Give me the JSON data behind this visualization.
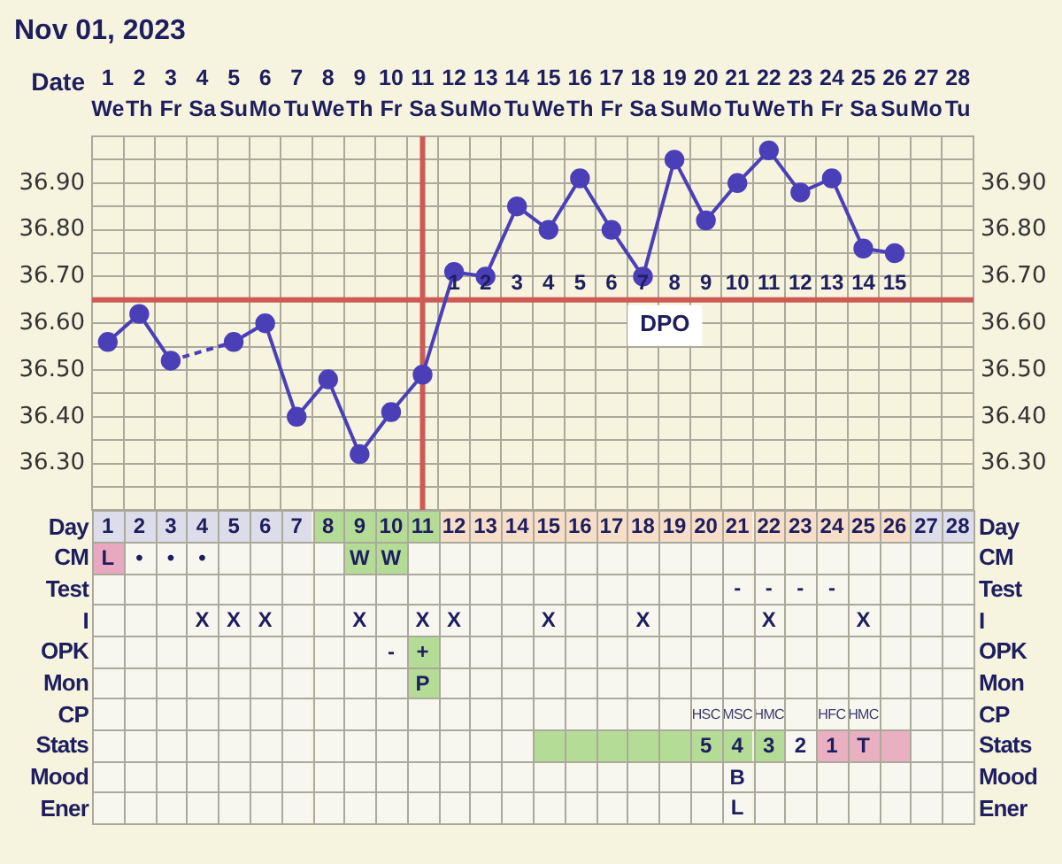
{
  "chart_data": [
    {
      "type": "line",
      "title": "Nov 01, 2023",
      "xlabel": "Date",
      "categories": [
        "1\nWe",
        "2\nTh",
        "3\nFr",
        "4\nSa",
        "5\nSu",
        "6\nMo",
        "7\nTu",
        "8\nWe",
        "9\nTh",
        "10\nFr",
        "11\nSa",
        "12\nSu",
        "13\nMo",
        "14\nTu",
        "15\nWe",
        "16\nTh",
        "17\nFr",
        "18\nSa",
        "19\nSu",
        "20\nMo",
        "21\nTu",
        "22\nWe",
        "23\nTh",
        "24\nFr",
        "25\nSa",
        "26\nSu",
        "27\nMo",
        "28\nTu"
      ],
      "series": [
        {
          "color": "#4b3fb8",
          "values": [
            36.56,
            36.62,
            36.52,
            null,
            36.56,
            36.6,
            36.4,
            36.48,
            36.32,
            36.41,
            36.49,
            36.71,
            36.7,
            36.85,
            36.8,
            36.91,
            36.8,
            36.7,
            36.95,
            36.82,
            36.9,
            36.97,
            36.88,
            36.91,
            36.76,
            36.75,
            null,
            null
          ]
        }
      ],
      "marker": "circle",
      "grid": true,
      "ylim": [
        36.2,
        37.0
      ],
      "yticks": [
        {
          "value": 36.2,
          "label": null
        },
        {
          "value": 36.25,
          "label": null
        },
        {
          "value": 36.3,
          "label": "36.30"
        },
        {
          "value": 36.35,
          "label": null
        },
        {
          "value": 36.4,
          "label": "36.40"
        },
        {
          "value": 36.45,
          "label": null
        },
        {
          "value": 36.5,
          "label": "36.50"
        },
        {
          "value": 36.55,
          "label": null
        },
        {
          "value": 36.6,
          "label": "36.60"
        },
        {
          "value": 36.7,
          "label": "36.70"
        },
        {
          "value": 36.75,
          "label": null
        },
        {
          "value": 36.8,
          "label": "36.80"
        },
        {
          "value": 36.85,
          "label": null
        },
        {
          "value": 36.9,
          "label": "36.90"
        },
        {
          "value": 36.95,
          "label": null
        }
      ],
      "y2lim": [
        36.2,
        37.0
      ],
      "y2ticks": [
        {
          "value": 36.2,
          "label": null
        },
        {
          "value": 36.25,
          "label": null
        },
        {
          "value": 36.3,
          "label": "36.30"
        },
        {
          "value": 36.35,
          "label": null
        },
        {
          "value": 36.4,
          "label": "36.40"
        },
        {
          "value": 36.45,
          "label": null
        },
        {
          "value": 36.5,
          "label": "36.50"
        },
        {
          "value": 36.55,
          "label": null
        },
        {
          "value": 36.6,
          "label": "36.60"
        },
        {
          "value": 36.7,
          "label": "36.70"
        },
        {
          "value": 36.75,
          "label": null
        },
        {
          "value": 36.8,
          "label": "36.80"
        },
        {
          "value": 36.85,
          "label": null
        },
        {
          "value": 36.9,
          "label": "36.90"
        },
        {
          "value": 36.95,
          "label": null
        }
      ],
      "ref_lines": [
        {
          "axis": "y",
          "value": 36.65,
          "label": "DPO",
          "color": "#cc5a55"
        },
        {
          "axis": "x",
          "value": "11\nSa",
          "color": "#cc5a55"
        }
      ],
      "annotations": [
        "1",
        "2",
        "3",
        "4",
        "5",
        "6",
        "7",
        "8",
        "9",
        "10",
        "11",
        "12",
        "13",
        "14",
        "15"
      ]
    },
    {
      "type": "heatmap",
      "grid": true,
      "categories": [
        null,
        null,
        null,
        null,
        null,
        null,
        null,
        null,
        null,
        null,
        null,
        null,
        null,
        null,
        null,
        null,
        null,
        null,
        null,
        null,
        null,
        null,
        null,
        null,
        null,
        null,
        null,
        null
      ],
      "y_categories": [
        "Day",
        "CM",
        "Test",
        "I",
        "OPK",
        "Mon",
        "CP",
        "Stats",
        "Mood",
        "Ener"
      ],
      "y2_categories": [
        "Day",
        "CM",
        "Test",
        "I",
        "OPK",
        "Mon",
        "CP",
        "Stats",
        "Mood",
        "Ener"
      ],
      "cells": [
        [
          null,
          null,
          null,
          null,
          null,
          null,
          null,
          null,
          null,
          null,
          null,
          null,
          null,
          null,
          null,
          null,
          null,
          null,
          null,
          null,
          null,
          null,
          null,
          null,
          null,
          null,
          null,
          null
        ],
        [
          null,
          null,
          null,
          null,
          null,
          null,
          null,
          null,
          null,
          null,
          null,
          null,
          null,
          null,
          null,
          null,
          null,
          null,
          null,
          null,
          null,
          null,
          null,
          null,
          null,
          null,
          null,
          null
        ],
        [
          null,
          null,
          null,
          null,
          null,
          null,
          null,
          null,
          null,
          null,
          null,
          null,
          null,
          null,
          null,
          null,
          null,
          null,
          null,
          null,
          null,
          null,
          null,
          null,
          null,
          null,
          null,
          null
        ],
        [
          null,
          null,
          null,
          null,
          null,
          null,
          null,
          null,
          null,
          null,
          null,
          null,
          null,
          null,
          null,
          null,
          null,
          null,
          null,
          null,
          null,
          null,
          null,
          null,
          null,
          null,
          null,
          null
        ],
        [
          null,
          null,
          null,
          null,
          null,
          null,
          null,
          null,
          null,
          null,
          null,
          null,
          null,
          null,
          null,
          null,
          null,
          null,
          null,
          null,
          null,
          null,
          null,
          null,
          null,
          null,
          null,
          null
        ],
        [
          null,
          null,
          null,
          null,
          null,
          null,
          null,
          null,
          null,
          null,
          null,
          null,
          null,
          null,
          null,
          null,
          null,
          null,
          null,
          null,
          null,
          null,
          null,
          null,
          null,
          null,
          null,
          null
        ],
        [
          null,
          null,
          null,
          null,
          null,
          null,
          null,
          null,
          null,
          null,
          null,
          null,
          null,
          null,
          null,
          null,
          null,
          null,
          null,
          null,
          null,
          null,
          null,
          null,
          null,
          null,
          null,
          null
        ],
        [
          null,
          null,
          null,
          null,
          null,
          null,
          null,
          null,
          null,
          null,
          null,
          null,
          null,
          null,
          null,
          null,
          null,
          null,
          null,
          null,
          null,
          null,
          null,
          null,
          null,
          null,
          null,
          null
        ],
        [
          null,
          null,
          null,
          null,
          null,
          null,
          null,
          null,
          null,
          null,
          null,
          null,
          null,
          null,
          null,
          null,
          null,
          null,
          null,
          null,
          null,
          null,
          null,
          null,
          null,
          null,
          null,
          null
        ],
        [
          null,
          null,
          null,
          null,
          null,
          null,
          null,
          null,
          null,
          null,
          null,
          null,
          null,
          null,
          null,
          null,
          null,
          null,
          null,
          null,
          null,
          null,
          null,
          null,
          null,
          null,
          null,
          null
        ]
      ],
      "cell_labels": [
        [
          "1",
          "2",
          "3",
          "4",
          "5",
          "6",
          "7",
          "8",
          "9",
          "10",
          "11",
          "12",
          "13",
          "14",
          "15",
          "16",
          "17",
          "18",
          "19",
          "20",
          "21",
          "22",
          "23",
          "24",
          "25",
          "26",
          "27",
          "28"
        ],
        [
          "L",
          "•",
          "•",
          "•",
          null,
          null,
          null,
          null,
          "W",
          "W",
          null,
          null,
          null,
          null,
          null,
          null,
          null,
          null,
          null,
          null,
          null,
          null,
          null,
          null,
          null,
          null,
          null,
          null
        ],
        [
          null,
          null,
          null,
          null,
          null,
          null,
          null,
          null,
          null,
          null,
          null,
          null,
          null,
          null,
          null,
          null,
          null,
          null,
          null,
          null,
          "-",
          "-",
          "-",
          "-",
          null,
          null,
          null,
          null
        ],
        [
          null,
          null,
          null,
          "X",
          "X",
          "X",
          null,
          null,
          "X",
          null,
          "X",
          "X",
          null,
          null,
          "X",
          null,
          null,
          "X",
          null,
          null,
          null,
          "X",
          null,
          null,
          "X",
          null,
          null,
          null
        ],
        [
          null,
          null,
          null,
          null,
          null,
          null,
          null,
          null,
          null,
          "-",
          "+",
          null,
          null,
          null,
          null,
          null,
          null,
          null,
          null,
          null,
          null,
          null,
          null,
          null,
          null,
          null,
          null,
          null
        ],
        [
          null,
          null,
          null,
          null,
          null,
          null,
          null,
          null,
          null,
          null,
          "P",
          null,
          null,
          null,
          null,
          null,
          null,
          null,
          null,
          null,
          null,
          null,
          null,
          null,
          null,
          null,
          null,
          null
        ],
        [
          null,
          null,
          null,
          null,
          null,
          null,
          null,
          null,
          null,
          null,
          null,
          null,
          null,
          null,
          null,
          null,
          null,
          null,
          null,
          "HSC",
          "MSC",
          "HMC",
          null,
          "HFC",
          "HMC",
          null,
          null,
          null
        ],
        [
          null,
          null,
          null,
          null,
          null,
          null,
          null,
          null,
          null,
          null,
          null,
          null,
          null,
          null,
          null,
          null,
          null,
          null,
          null,
          "5",
          "4",
          "3",
          "2",
          "1",
          "T",
          null,
          null,
          null
        ],
        [
          null,
          null,
          null,
          null,
          null,
          null,
          null,
          null,
          null,
          null,
          null,
          null,
          null,
          null,
          null,
          null,
          null,
          null,
          null,
          null,
          "B",
          null,
          null,
          null,
          null,
          null,
          null,
          null
        ],
        [
          null,
          null,
          null,
          null,
          null,
          null,
          null,
          null,
          null,
          null,
          null,
          null,
          null,
          null,
          null,
          null,
          null,
          null,
          null,
          null,
          "L",
          null,
          null,
          null,
          null,
          null,
          null,
          null
        ]
      ],
      "colors": [
        [
          "#dcdcea",
          "#dcdcea",
          "#dcdcea",
          "#dcdcea",
          "#dcdcea",
          "#dcdcea",
          "#dcdcea",
          "#b5dc96",
          "#b5dc96",
          "#b5dc96",
          "#b5dc96",
          "#f7dec8",
          "#f7dec8",
          "#f7dec8",
          "#f7dec8",
          "#f7dec8",
          "#f7dec8",
          "#f7dec8",
          "#f7dec8",
          "#f7dec8",
          "#f7dec8",
          "#f7dec8",
          "#f7dec8",
          "#f7dec8",
          "#f7dec8",
          "#f7dec8",
          "#dcdcea",
          "#dcdcea"
        ],
        [
          "#e8a9c0",
          null,
          null,
          null,
          null,
          null,
          null,
          null,
          "#b5dc96",
          "#b5dc96",
          null,
          null,
          null,
          null,
          null,
          null,
          null,
          null,
          null,
          null,
          null,
          null,
          null,
          null,
          null,
          null,
          null,
          null
        ],
        [
          null,
          null,
          null,
          null,
          null,
          null,
          null,
          null,
          null,
          null,
          null,
          null,
          null,
          null,
          null,
          null,
          null,
          null,
          null,
          null,
          null,
          null,
          null,
          null,
          null,
          null,
          null,
          null
        ],
        [
          null,
          null,
          null,
          null,
          null,
          null,
          null,
          null,
          null,
          null,
          null,
          null,
          null,
          null,
          null,
          null,
          null,
          null,
          null,
          null,
          null,
          null,
          null,
          null,
          null,
          null,
          null,
          null
        ],
        [
          null,
          null,
          null,
          null,
          null,
          null,
          null,
          null,
          null,
          null,
          "#b5dc96",
          null,
          null,
          null,
          null,
          null,
          null,
          null,
          null,
          null,
          null,
          null,
          null,
          null,
          null,
          null,
          null,
          null
        ],
        [
          null,
          null,
          null,
          null,
          null,
          null,
          null,
          null,
          null,
          null,
          "#b5dc96",
          null,
          null,
          null,
          null,
          null,
          null,
          null,
          null,
          null,
          null,
          null,
          null,
          null,
          null,
          null,
          null,
          null
        ],
        [
          null,
          null,
          null,
          null,
          null,
          null,
          null,
          null,
          null,
          null,
          null,
          null,
          null,
          null,
          null,
          null,
          null,
          null,
          null,
          null,
          null,
          null,
          null,
          null,
          null,
          null,
          null,
          null
        ],
        [
          null,
          null,
          null,
          null,
          null,
          null,
          null,
          null,
          null,
          null,
          null,
          null,
          null,
          null,
          "#b5dc96",
          "#b5dc96",
          "#b5dc96",
          "#b5dc96",
          "#b5dc96",
          "#b5dc96",
          "#b5dc96",
          "#b5dc96",
          null,
          "#e8b0c0",
          "#e8b0c0",
          "#e8b0c0",
          null,
          null
        ],
        [
          null,
          null,
          null,
          null,
          null,
          null,
          null,
          null,
          null,
          null,
          null,
          null,
          null,
          null,
          null,
          null,
          null,
          null,
          null,
          null,
          null,
          null,
          null,
          null,
          null,
          null,
          null,
          null
        ],
        [
          null,
          null,
          null,
          null,
          null,
          null,
          null,
          null,
          null,
          null,
          null,
          null,
          null,
          null,
          null,
          null,
          null,
          null,
          null,
          null,
          null,
          null,
          null,
          null,
          null,
          null,
          null,
          null
        ]
      ]
    }
  ]
}
